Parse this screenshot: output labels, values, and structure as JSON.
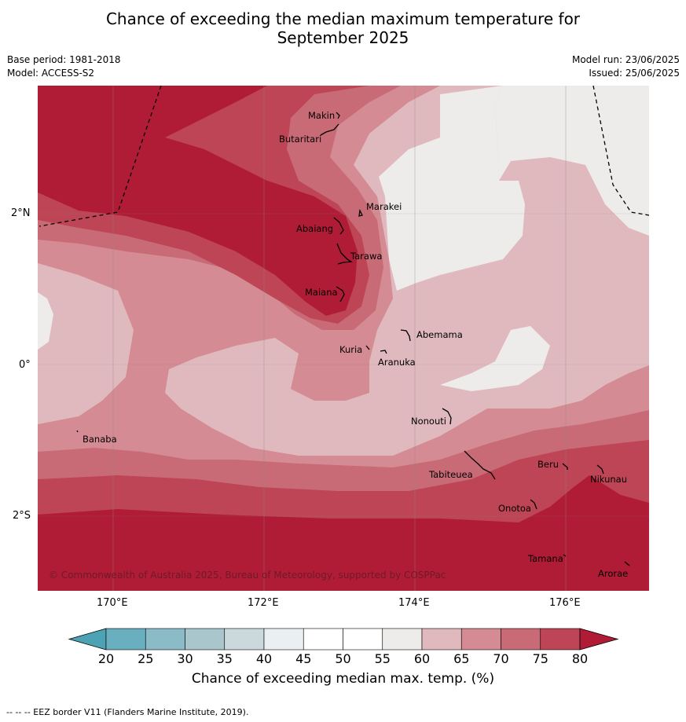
{
  "title": {
    "line1": "Chance of exceeding the median maximum temperature for",
    "line2": "September 2025"
  },
  "meta": {
    "base_period": "Base period: 1981-2018",
    "model": "Model: ACCESS-S2",
    "model_run": "Model run: 23/06/2025",
    "issued": "Issued: 25/06/2025"
  },
  "map": {
    "lon_labels": [
      "170°E",
      "172°E",
      "174°E",
      "176°E"
    ],
    "lat_labels": [
      "2°N",
      "0°",
      "2°S"
    ],
    "copyright": "© Commonwealth of Australia 2025, Bureau of Meteorology, supported by COSPPac",
    "places": [
      "Makin",
      "Butaritari",
      "Marakei",
      "Abaiang",
      "Tarawa",
      "Maiana",
      "Abemama",
      "Kuria",
      "Aranuka",
      "Nonouti",
      "Banaba",
      "Tabiteuea",
      "Beru",
      "Nikunau",
      "Onotoa",
      "Tamana",
      "Arorae"
    ]
  },
  "colorbar": {
    "ticks": [
      "20",
      "25",
      "30",
      "35",
      "40",
      "45",
      "50",
      "55",
      "60",
      "65",
      "70",
      "75",
      "80"
    ],
    "colors": [
      "#4da3b3",
      "#6aafbf",
      "#8bbbc6",
      "#a8c6cc",
      "#cbd8dc",
      "#eaf0f2",
      "#ffffff",
      "#ffffff",
      "#eeecea",
      "#e0b9be",
      "#d48b93",
      "#c86b76",
      "#bd4555",
      "#b01c36"
    ],
    "label": "Chance of exceeding median max. temp. (%)"
  },
  "footnote": "--  --  -- EEZ border V11 (Flanders Marine Institute, 2019)."
}
